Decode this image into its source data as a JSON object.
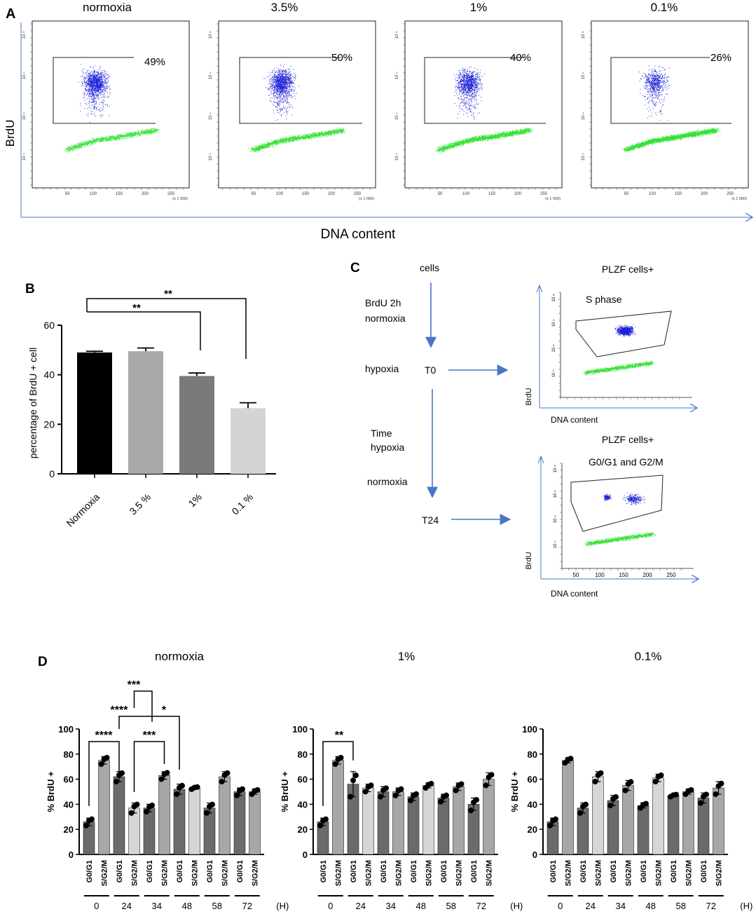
{
  "colors": {
    "blue_dots": "#1b1fd6",
    "green_dots": "#2ee02e",
    "arrow_blue": "#4a76c8",
    "black": "#111111"
  },
  "panel_a": {
    "label": "A",
    "y_label": "BrdU",
    "x_label": "DNA content",
    "plots": [
      {
        "title": "normoxia",
        "gate_pct": "49%"
      },
      {
        "title": "3.5%",
        "gate_pct": "50%"
      },
      {
        "title": "1%",
        "gate_pct": "40%"
      },
      {
        "title": "0.1%",
        "gate_pct": "26%"
      }
    ],
    "x_ticks": [
      "50",
      "100",
      "150",
      "200",
      "250"
    ],
    "x_unit": "(x 1 000)",
    "y_tick_exps": [
      "5",
      "4",
      "3",
      "2"
    ]
  },
  "panel_b": {
    "label": "B",
    "sig_top": "**",
    "sig_inner": "**",
    "chart_data": {
      "type": "bar",
      "ylabel": "percentage of BrdU + cell",
      "categories": [
        "Normoxia",
        "3.5 %",
        "1%",
        "0.1 %"
      ],
      "values": [
        49,
        49.5,
        39.5,
        26.5
      ],
      "errors": [
        0.5,
        1.3,
        1.2,
        2.2
      ],
      "bar_colors": [
        "#000000",
        "#a9a9ac",
        "#7a7a7c",
        "#d4d4d4"
      ],
      "ylim": [
        0,
        60
      ],
      "yticks": [
        "0",
        "20",
        "40",
        "60"
      ]
    }
  },
  "panel_c": {
    "label": "C",
    "steps": {
      "cells": "cells",
      "brdu": "BrdU 2h",
      "normoxia1": "normoxia",
      "hypoxia": "hypoxia",
      "t0": "T0",
      "time": "Time",
      "hypoxia2": "hypoxia",
      "normoxia2": "normoxia",
      "t24": "T24"
    },
    "plot_top": {
      "title": "PLZF cells+",
      "gate": "S phase",
      "ylabel": "BrdU",
      "xlabel": "DNA content"
    },
    "plot_bottom": {
      "title": "PLZF cells+",
      "gate": "G0/G1 and G2/M",
      "ylabel": "BrdU",
      "xlabel": "DNA content",
      "x_ticks": [
        "50",
        "100",
        "150",
        "200",
        "250"
      ]
    },
    "y_tick_exps": [
      "5",
      "4",
      "3",
      "2"
    ]
  },
  "panel_d": {
    "label": "D",
    "unit": "(H)",
    "sig_labels": [
      "***",
      "****",
      "*",
      "****",
      "***",
      "**"
    ],
    "chart_data": [
      {
        "type": "bar",
        "title": "normoxia",
        "ylabel": "% BrdU +",
        "ylim": [
          0,
          100
        ],
        "yticks": [
          "0",
          "20",
          "40",
          "60",
          "80",
          "100"
        ],
        "categories": [
          "G0/G1",
          "S/G2/M",
          "G0/G1",
          "S/G2/M",
          "G0/G1",
          "S/G2/M",
          "G0/G1",
          "S/G2/M",
          "G0/G1",
          "S/G2/M",
          "G0/G1",
          "S/G2/M"
        ],
        "time_groups": [
          "0",
          "24",
          "34",
          "48",
          "58",
          "72"
        ],
        "values": [
          26,
          75,
          62,
          37,
          37,
          63,
          52,
          53,
          37,
          62,
          50,
          50
        ],
        "errors": [
          3,
          3,
          4,
          4,
          3,
          3,
          4,
          1,
          4,
          4,
          3,
          2
        ]
      },
      {
        "type": "bar",
        "title": "1%",
        "ylabel": "% BrdU +",
        "ylim": [
          0,
          100
        ],
        "yticks": [
          "0",
          "20",
          "40",
          "60",
          "80",
          "100"
        ],
        "categories": [
          "G0/G1",
          "S/G2/M",
          "G0/G1",
          "S/G2/M",
          "G0/G1",
          "S/G2/M",
          "G0/G1",
          "S/G2/M",
          "G0/G1",
          "S/G2/M",
          "G0/G1",
          "S/G2/M"
        ],
        "time_groups": [
          "0",
          "24",
          "34",
          "48",
          "58",
          "72"
        ],
        "values": [
          26,
          75,
          56,
          53,
          50,
          50,
          46,
          55,
          45,
          54,
          40,
          60
        ],
        "errors": [
          3,
          3,
          10,
          3,
          4,
          3,
          3,
          2,
          3,
          3,
          5,
          5
        ]
      },
      {
        "type": "bar",
        "title": "0.1%",
        "ylabel": "% BrdU +",
        "ylim": [
          0,
          100
        ],
        "yticks": [
          "0",
          "20",
          "40",
          "60",
          "80",
          "100"
        ],
        "categories": [
          "G0/G1",
          "S/G2/M",
          "G0/G1",
          "S/G2/M",
          "G0/G1",
          "S/G2/M",
          "G0/G1",
          "S/G2/M",
          "G0/G1",
          "S/G2/M",
          "G0/G1",
          "S/G2/M"
        ],
        "time_groups": [
          "0",
          "24",
          "34",
          "48",
          "58",
          "72"
        ],
        "values": [
          26,
          75,
          37,
          62,
          43,
          55,
          39,
          61,
          47,
          50,
          45,
          53
        ],
        "errors": [
          3,
          2,
          4,
          4,
          4,
          4,
          2,
          3,
          1,
          2,
          4,
          5
        ]
      }
    ]
  }
}
